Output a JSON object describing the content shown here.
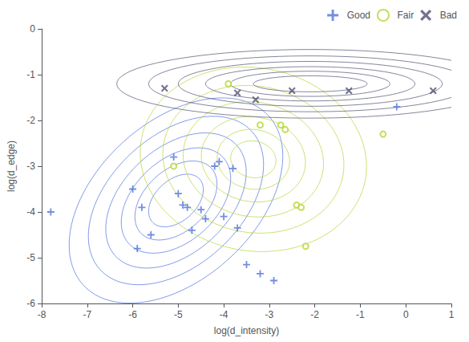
{
  "chart_data": {
    "type": "scatter",
    "xlabel": "log(d_intensity)",
    "ylabel": "log(d_edge)",
    "xlim": [
      -8,
      1
    ],
    "ylim": [
      -6,
      0
    ],
    "xticks": [
      -8,
      -7,
      -6,
      -5,
      -4,
      -3,
      -2,
      -1,
      0,
      1
    ],
    "yticks": [
      0,
      -1,
      -2,
      -3,
      -4,
      -5,
      -6
    ],
    "grid": false,
    "legend": "upper right",
    "series": [
      {
        "name": "Good",
        "marker": "plus",
        "x": [
          -7.8,
          -6.0,
          -5.9,
          -5.8,
          -5.6,
          -5.1,
          -5.0,
          -4.9,
          -4.8,
          -4.7,
          -4.5,
          -4.4,
          -4.2,
          -4.1,
          -4.0,
          -3.8,
          -3.7,
          -3.5,
          -3.2,
          -2.9,
          -0.2
        ],
        "y": [
          -4.0,
          -3.5,
          -4.8,
          -3.9,
          -4.5,
          -2.8,
          -3.6,
          -3.85,
          -3.9,
          -4.4,
          -3.95,
          -4.15,
          -3.0,
          -2.9,
          -4.1,
          -3.05,
          -4.35,
          -5.15,
          -5.35,
          -5.5,
          -1.7
        ],
        "ellipses": [
          {
            "cx": -5.05,
            "cy": -3.75,
            "w": 1.4,
            "h": 0.9,
            "angle": 42
          },
          {
            "cx": -5.05,
            "cy": -3.75,
            "w": 2.1,
            "h": 1.35,
            "angle": 42
          },
          {
            "cx": -5.05,
            "cy": -3.75,
            "w": 2.8,
            "h": 1.8,
            "angle": 42
          },
          {
            "cx": -5.05,
            "cy": -3.75,
            "w": 3.6,
            "h": 2.3,
            "angle": 42
          },
          {
            "cx": -5.05,
            "cy": -3.75,
            "w": 4.5,
            "h": 2.85,
            "angle": 42
          },
          {
            "cx": -5.05,
            "cy": -3.75,
            "w": 5.5,
            "h": 3.45,
            "angle": 42
          }
        ]
      },
      {
        "name": "Fair",
        "marker": "circle",
        "x": [
          -5.1,
          -3.9,
          -3.2,
          -2.75,
          -2.65,
          -2.4,
          -2.3,
          -0.5,
          -2.2
        ],
        "y": [
          -3.0,
          -1.2,
          -2.1,
          -2.1,
          -2.2,
          -3.85,
          -3.9,
          -2.3,
          -4.75
        ],
        "ellipses": [
          {
            "cx": -3.35,
            "cy": -2.85,
            "w": 1.0,
            "h": 0.8,
            "angle": -10
          },
          {
            "cx": -3.35,
            "cy": -2.85,
            "w": 1.6,
            "h": 1.3,
            "angle": -10
          },
          {
            "cx": -3.35,
            "cy": -2.85,
            "w": 2.3,
            "h": 1.85,
            "angle": -10
          },
          {
            "cx": -3.35,
            "cy": -2.85,
            "w": 3.1,
            "h": 2.5,
            "angle": -10
          },
          {
            "cx": -3.35,
            "cy": -2.85,
            "w": 4.0,
            "h": 3.2,
            "angle": -10
          },
          {
            "cx": -3.35,
            "cy": -2.85,
            "w": 5.0,
            "h": 4.0,
            "angle": -10
          }
        ]
      },
      {
        "name": "Bad",
        "marker": "x",
        "x": [
          -5.3,
          -3.7,
          -3.3,
          -2.5,
          -1.25,
          0.6
        ],
        "y": [
          -1.3,
          -1.4,
          -1.55,
          -1.35,
          -1.35,
          -1.35
        ],
        "ellipses": [
          {
            "cx": -2.1,
            "cy": -1.2,
            "w": 2.5,
            "h": 0.35,
            "angle": 0
          },
          {
            "cx": -2.1,
            "cy": -1.2,
            "w": 3.5,
            "h": 0.55,
            "angle": 0
          },
          {
            "cx": -2.1,
            "cy": -1.2,
            "w": 4.6,
            "h": 0.75,
            "angle": 0
          },
          {
            "cx": -2.1,
            "cy": -1.2,
            "w": 5.8,
            "h": 0.98,
            "angle": 0
          },
          {
            "cx": -2.1,
            "cy": -1.2,
            "w": 7.1,
            "h": 1.22,
            "angle": 0
          },
          {
            "cx": -2.1,
            "cy": -1.2,
            "w": 8.5,
            "h": 1.5,
            "angle": 0
          }
        ]
      }
    ]
  }
}
